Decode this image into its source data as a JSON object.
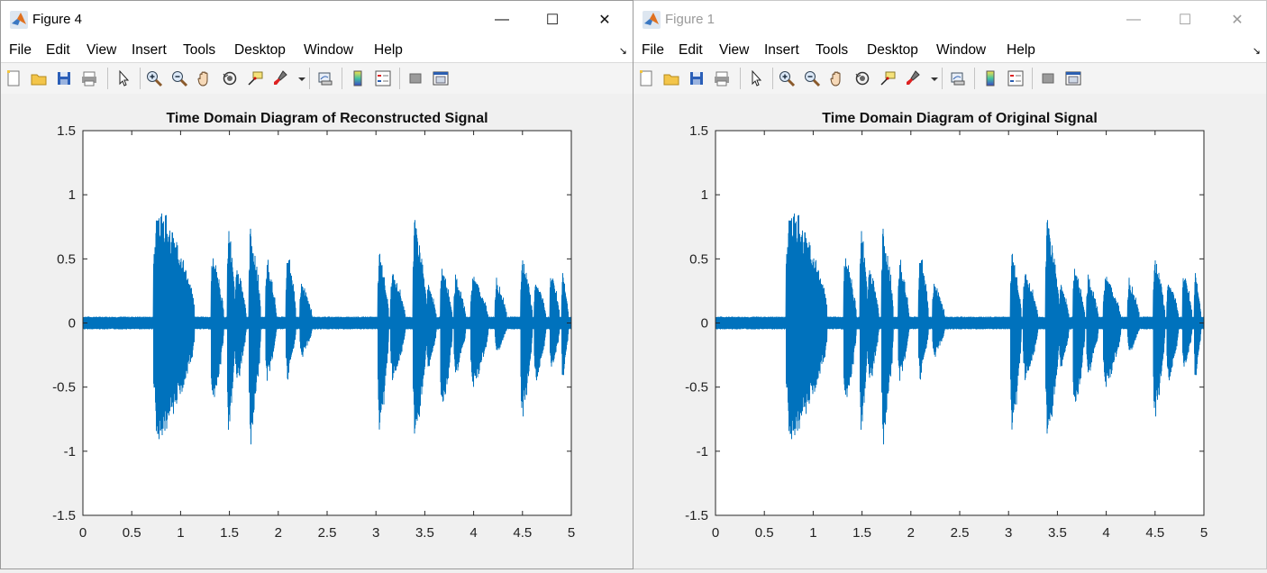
{
  "windows": [
    {
      "id": "figure4",
      "title": "Figure 4",
      "active": true,
      "window_buttons": {
        "minimize": "—",
        "maximize": "☐",
        "close": "✕"
      },
      "menu": [
        "File",
        "Edit",
        "View",
        "Insert",
        "Tools",
        "Desktop",
        "Window",
        "Help"
      ],
      "toolbar_icons": [
        "new-figure-icon",
        "open-icon",
        "save-icon",
        "print-icon",
        "pointer-icon",
        "zoom-in-icon",
        "zoom-out-icon",
        "pan-icon",
        "rotate-icon",
        "data-cursor-icon",
        "brush-icon",
        "brush-dropdown-icon",
        "link-plot-icon",
        "colorbar-icon",
        "legend-icon",
        "hide-plot-tools-icon",
        "show-plot-tools-icon"
      ]
    },
    {
      "id": "figure1",
      "title": "Figure 1",
      "active": false,
      "window_buttons": {
        "minimize": "—",
        "maximize": "☐",
        "close": "✕"
      },
      "menu": [
        "File",
        "Edit",
        "View",
        "Insert",
        "Tools",
        "Desktop",
        "Window",
        "Help"
      ],
      "toolbar_icons": [
        "new-figure-icon",
        "open-icon",
        "save-icon",
        "print-icon",
        "pointer-icon",
        "zoom-in-icon",
        "zoom-out-icon",
        "pan-icon",
        "rotate-icon",
        "data-cursor-icon",
        "brush-icon",
        "brush-dropdown-icon",
        "link-plot-icon",
        "colorbar-icon",
        "legend-icon",
        "hide-plot-tools-icon",
        "show-plot-tools-icon"
      ]
    }
  ],
  "colors": {
    "line": "#0072BD",
    "axes_bg": "#ffffff",
    "figure_bg": "#f0f0f0"
  },
  "chart_data": [
    {
      "type": "line",
      "title": "Time Domain Diagram of Reconstructed Signal",
      "xlabel": "",
      "ylabel": "",
      "xlim": [
        0,
        5
      ],
      "ylim": [
        -1.5,
        1.5
      ],
      "xticks": [
        "0",
        "0.5",
        "1",
        "1.5",
        "2",
        "2.5",
        "3",
        "3.5",
        "4",
        "4.5",
        "5"
      ],
      "yticks": [
        "1.5",
        "1",
        "0.5",
        "0",
        "-0.5",
        "-1",
        "-1.5"
      ],
      "grid": false,
      "series": [
        {
          "noise_amplitude": 0.05,
          "bursts": [
            {
              "start": 0.72,
              "end": 1.14,
              "max": 1.02,
              "min": -1.05
            },
            {
              "start": 1.31,
              "end": 1.44,
              "max": 0.6,
              "min": -0.7
            },
            {
              "start": 1.48,
              "end": 1.56,
              "max": 0.85,
              "min": -1.0
            },
            {
              "start": 1.56,
              "end": 1.67,
              "max": 0.5,
              "min": -0.55
            },
            {
              "start": 1.7,
              "end": 1.82,
              "max": 0.82,
              "min": -1.0
            },
            {
              "start": 1.87,
              "end": 1.98,
              "max": 0.55,
              "min": -0.5
            },
            {
              "start": 2.08,
              "end": 2.18,
              "max": 0.62,
              "min": -0.5
            },
            {
              "start": 2.22,
              "end": 2.35,
              "max": 0.35,
              "min": -0.3
            },
            {
              "start": 3.02,
              "end": 3.13,
              "max": 0.6,
              "min": -0.95
            },
            {
              "start": 3.15,
              "end": 3.3,
              "max": 0.45,
              "min": -0.5
            },
            {
              "start": 3.38,
              "end": 3.52,
              "max": 0.9,
              "min": -1.03
            },
            {
              "start": 3.52,
              "end": 3.62,
              "max": 0.35,
              "min": -0.4
            },
            {
              "start": 3.66,
              "end": 3.78,
              "max": 0.5,
              "min": -0.8
            },
            {
              "start": 3.8,
              "end": 3.92,
              "max": 0.4,
              "min": -0.45
            },
            {
              "start": 3.97,
              "end": 4.15,
              "max": 0.4,
              "min": -0.55
            },
            {
              "start": 4.22,
              "end": 4.34,
              "max": 0.37,
              "min": -0.27
            },
            {
              "start": 4.48,
              "end": 4.6,
              "max": 0.58,
              "min": -0.85
            },
            {
              "start": 4.62,
              "end": 4.74,
              "max": 0.4,
              "min": -0.5
            },
            {
              "start": 4.78,
              "end": 4.88,
              "max": 0.45,
              "min": -0.4
            },
            {
              "start": 4.9,
              "end": 4.97,
              "max": 0.45,
              "min": -0.5
            }
          ]
        }
      ]
    },
    {
      "type": "line",
      "title": "Time Domain Diagram of Original Signal",
      "xlabel": "",
      "ylabel": "",
      "xlim": [
        0,
        5
      ],
      "ylim": [
        -1.5,
        1.5
      ],
      "xticks": [
        "0",
        "0.5",
        "1",
        "1.5",
        "2",
        "2.5",
        "3",
        "3.5",
        "4",
        "4.5",
        "5"
      ],
      "yticks": [
        "1.5",
        "1",
        "0.5",
        "0",
        "-0.5",
        "-1",
        "-1.5"
      ],
      "grid": false,
      "series": [
        {
          "noise_amplitude": 0.05,
          "bursts": [
            {
              "start": 0.72,
              "end": 1.14,
              "max": 1.02,
              "min": -1.05
            },
            {
              "start": 1.31,
              "end": 1.44,
              "max": 0.6,
              "min": -0.7
            },
            {
              "start": 1.48,
              "end": 1.56,
              "max": 0.85,
              "min": -1.0
            },
            {
              "start": 1.56,
              "end": 1.67,
              "max": 0.5,
              "min": -0.55
            },
            {
              "start": 1.7,
              "end": 1.82,
              "max": 0.82,
              "min": -1.0
            },
            {
              "start": 1.87,
              "end": 1.98,
              "max": 0.55,
              "min": -0.5
            },
            {
              "start": 2.08,
              "end": 2.18,
              "max": 0.62,
              "min": -0.5
            },
            {
              "start": 2.22,
              "end": 2.35,
              "max": 0.35,
              "min": -0.3
            },
            {
              "start": 3.02,
              "end": 3.13,
              "max": 0.6,
              "min": -0.95
            },
            {
              "start": 3.15,
              "end": 3.3,
              "max": 0.45,
              "min": -0.5
            },
            {
              "start": 3.38,
              "end": 3.52,
              "max": 0.9,
              "min": -1.03
            },
            {
              "start": 3.52,
              "end": 3.62,
              "max": 0.35,
              "min": -0.4
            },
            {
              "start": 3.66,
              "end": 3.78,
              "max": 0.5,
              "min": -0.8
            },
            {
              "start": 3.8,
              "end": 3.92,
              "max": 0.4,
              "min": -0.45
            },
            {
              "start": 3.97,
              "end": 4.15,
              "max": 0.4,
              "min": -0.55
            },
            {
              "start": 4.22,
              "end": 4.34,
              "max": 0.37,
              "min": -0.27
            },
            {
              "start": 4.48,
              "end": 4.6,
              "max": 0.58,
              "min": -0.85
            },
            {
              "start": 4.62,
              "end": 4.74,
              "max": 0.4,
              "min": -0.5
            },
            {
              "start": 4.78,
              "end": 4.88,
              "max": 0.45,
              "min": -0.4
            },
            {
              "start": 4.9,
              "end": 4.97,
              "max": 0.45,
              "min": -0.5
            }
          ]
        }
      ]
    }
  ]
}
